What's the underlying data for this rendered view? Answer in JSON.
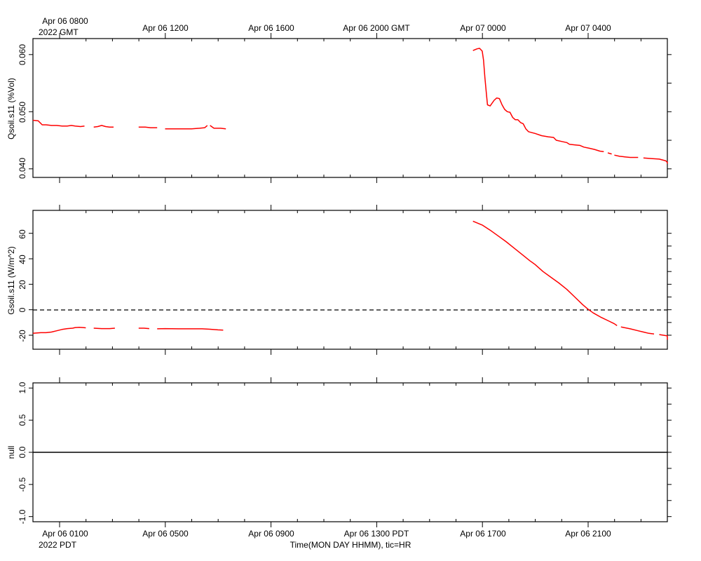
{
  "top_axis": {
    "title_line1": "Apr 06 0800",
    "title_line2": "2022 GMT",
    "labels": [
      "Apr 06 1200",
      "Apr 06 1600",
      "Apr 06 2000 GMT",
      "Apr 07 0000",
      "Apr 07 0400"
    ]
  },
  "bottom_axis": {
    "title_line1": "Apr 06 0100",
    "title_line2": "2022 PDT",
    "labels": [
      "Apr 06 0500",
      "Apr 06 0900",
      "Apr 06 1300 PDT",
      "Apr 06 1700",
      "Apr 06 2100"
    ],
    "xlabel": "Time(MON DAY HHMM), tic=HR"
  },
  "colors": {
    "series": "#ff0000",
    "axes": "#000000",
    "background": "#ffffff"
  },
  "chart_data": [
    {
      "type": "line",
      "ylabel": "Qsoil.s11 (%Vol)",
      "yticks": [
        "0.040",
        "0.050",
        "0.060"
      ],
      "ylim": [
        0.0385,
        0.0628
      ],
      "xlim_hours_pdt": [
        0.0,
        24.0
      ],
      "grid": false,
      "series": [
        {
          "segments": [
            [
              [
                0.0,
                0.0485
              ],
              [
                0.2,
                0.0484
              ],
              [
                0.35,
                0.0477
              ],
              [
                0.5,
                0.0477
              ],
              [
                0.7,
                0.0476
              ],
              [
                0.9,
                0.0476
              ],
              [
                1.1,
                0.0475
              ],
              [
                1.3,
                0.0475
              ],
              [
                1.45,
                0.0476
              ],
              [
                1.6,
                0.0475
              ],
              [
                1.8,
                0.0474
              ],
              [
                1.95,
                0.0475
              ]
            ],
            [
              [
                2.3,
                0.0473
              ],
              [
                2.45,
                0.0474
              ],
              [
                2.6,
                0.0476
              ],
              [
                2.75,
                0.0474
              ],
              [
                2.9,
                0.0473
              ],
              [
                3.05,
                0.0473
              ]
            ],
            [
              [
                4.0,
                0.0473
              ],
              [
                4.25,
                0.0473
              ],
              [
                4.45,
                0.0472
              ],
              [
                4.7,
                0.0472
              ]
            ],
            [
              [
                5.0,
                0.047
              ],
              [
                5.4,
                0.047
              ],
              [
                5.8,
                0.047
              ],
              [
                6.0,
                0.047
              ],
              [
                6.3,
                0.0471
              ],
              [
                6.5,
                0.0472
              ],
              [
                6.6,
                0.0476
              ]
            ],
            [
              [
                6.7,
                0.0476
              ],
              [
                6.85,
                0.0471
              ],
              [
                7.1,
                0.0471
              ],
              [
                7.3,
                0.047
              ]
            ],
            [
              [
                16.65,
                0.0607
              ],
              [
                16.8,
                0.061
              ],
              [
                16.9,
                0.0611
              ],
              [
                17.0,
                0.0606
              ],
              [
                17.05,
                0.059
              ],
              [
                17.1,
                0.056
              ],
              [
                17.15,
                0.0535
              ],
              [
                17.2,
                0.0512
              ],
              [
                17.3,
                0.051
              ],
              [
                17.45,
                0.052
              ],
              [
                17.55,
                0.0524
              ],
              [
                17.65,
                0.0523
              ],
              [
                17.75,
                0.0512
              ],
              [
                17.85,
                0.0504
              ],
              [
                17.95,
                0.05
              ],
              [
                18.05,
                0.0499
              ],
              [
                18.15,
                0.049
              ],
              [
                18.25,
                0.0486
              ],
              [
                18.35,
                0.0486
              ],
              [
                18.45,
                0.0481
              ],
              [
                18.55,
                0.0479
              ],
              [
                18.65,
                0.047
              ],
              [
                18.75,
                0.0465
              ],
              [
                19.0,
                0.0462
              ],
              [
                19.25,
                0.0458
              ],
              [
                19.5,
                0.0456
              ],
              [
                19.7,
                0.0455
              ],
              [
                19.8,
                0.045
              ],
              [
                20.0,
                0.0448
              ],
              [
                20.2,
                0.0446
              ],
              [
                20.3,
                0.0443
              ],
              [
                20.5,
                0.0442
              ],
              [
                20.7,
                0.0441
              ],
              [
                20.85,
                0.0438
              ],
              [
                21.05,
                0.0436
              ],
              [
                21.25,
                0.0434
              ],
              [
                21.45,
                0.0431
              ],
              [
                21.6,
                0.043
              ]
            ],
            [
              [
                21.75,
                0.0428
              ],
              [
                21.9,
                0.0426
              ]
            ],
            [
              [
                22.0,
                0.0424
              ],
              [
                22.2,
                0.0422
              ],
              [
                22.4,
                0.0421
              ],
              [
                22.6,
                0.042
              ],
              [
                22.9,
                0.042
              ]
            ],
            [
              [
                23.1,
                0.0419
              ],
              [
                23.4,
                0.0418
              ],
              [
                23.7,
                0.0417
              ],
              [
                23.95,
                0.0414
              ],
              [
                24.2,
                0.0411
              ],
              [
                24.4,
                0.041
              ],
              [
                24.6,
                0.041
              ],
              [
                24.8,
                0.0409
              ]
            ]
          ]
        }
      ]
    },
    {
      "type": "line",
      "ylabel": "Gsoil.s11 (W/m^2)",
      "yticks": [
        "-20",
        "0",
        "20",
        "40",
        "60"
      ],
      "ylim": [
        -31,
        78
      ],
      "xlim_hours_pdt": [
        0.0,
        24.0
      ],
      "grid": false,
      "zero_line": true,
      "series": [
        {
          "segments": [
            [
              [
                0.0,
                -18.5
              ],
              [
                0.3,
                -18.0
              ],
              [
                0.5,
                -18.0
              ],
              [
                0.7,
                -17.5
              ],
              [
                0.9,
                -16.5
              ],
              [
                1.1,
                -15.5
              ],
              [
                1.3,
                -14.8
              ],
              [
                1.5,
                -14.5
              ],
              [
                1.6,
                -14.0
              ],
              [
                1.75,
                -13.8
              ],
              [
                1.9,
                -14.0
              ],
              [
                2.0,
                -14.2
              ]
            ],
            [
              [
                2.3,
                -14.5
              ],
              [
                2.6,
                -14.8
              ],
              [
                2.9,
                -14.8
              ],
              [
                3.1,
                -14.5
              ]
            ],
            [
              [
                4.0,
                -14.5
              ],
              [
                4.2,
                -14.5
              ],
              [
                4.4,
                -14.8
              ]
            ],
            [
              [
                4.7,
                -15.0
              ],
              [
                5.0,
                -14.8
              ],
              [
                5.5,
                -15.0
              ],
              [
                6.0,
                -15.0
              ],
              [
                6.4,
                -15.0
              ],
              [
                6.7,
                -15.3
              ],
              [
                7.0,
                -15.8
              ],
              [
                7.2,
                -16.0
              ]
            ],
            [
              [
                16.65,
                69.5
              ],
              [
                17.0,
                66.5
              ],
              [
                17.3,
                62.5
              ],
              [
                17.6,
                58.0
              ],
              [
                17.9,
                53.5
              ],
              [
                18.2,
                48.5
              ],
              [
                18.5,
                43.5
              ],
              [
                18.8,
                38.5
              ],
              [
                19.0,
                35.5
              ],
              [
                19.3,
                30.0
              ],
              [
                19.6,
                25.5
              ],
              [
                19.9,
                21.0
              ],
              [
                20.2,
                16.0
              ],
              [
                20.5,
                10.0
              ],
              [
                20.8,
                4.0
              ],
              [
                21.0,
                0.5
              ],
              [
                21.2,
                -2.5
              ],
              [
                21.5,
                -6.0
              ],
              [
                21.8,
                -9.0
              ],
              [
                22.0,
                -11.0
              ],
              [
                22.1,
                -12.5
              ]
            ],
            [
              [
                22.25,
                -13.5
              ],
              [
                22.6,
                -15.0
              ],
              [
                22.9,
                -16.5
              ],
              [
                23.1,
                -17.5
              ],
              [
                23.3,
                -18.5
              ],
              [
                23.5,
                -19.0
              ]
            ],
            [
              [
                23.7,
                -19.5
              ],
              [
                24.0,
                -20.5
              ],
              [
                24.3,
                -21.5
              ],
              [
                24.6,
                -22.5
              ],
              [
                24.9,
                -23.0
              ],
              [
                25.2,
                -23.3
              ],
              [
                25.4,
                -23.5
              ]
            ]
          ]
        }
      ]
    },
    {
      "type": "line",
      "ylabel": "null",
      "yticks": [
        "-1.0",
        "-0.5",
        "0.0",
        "0.5",
        "1.0"
      ],
      "ylim": [
        -1.08,
        1.08
      ],
      "xlim_hours_pdt": [
        0.0,
        24.0
      ],
      "grid": false,
      "series": [
        {
          "segments": [
            [
              [
                -1.0,
                0.0
              ],
              [
                25.4,
                0.0
              ]
            ]
          ]
        }
      ]
    }
  ]
}
